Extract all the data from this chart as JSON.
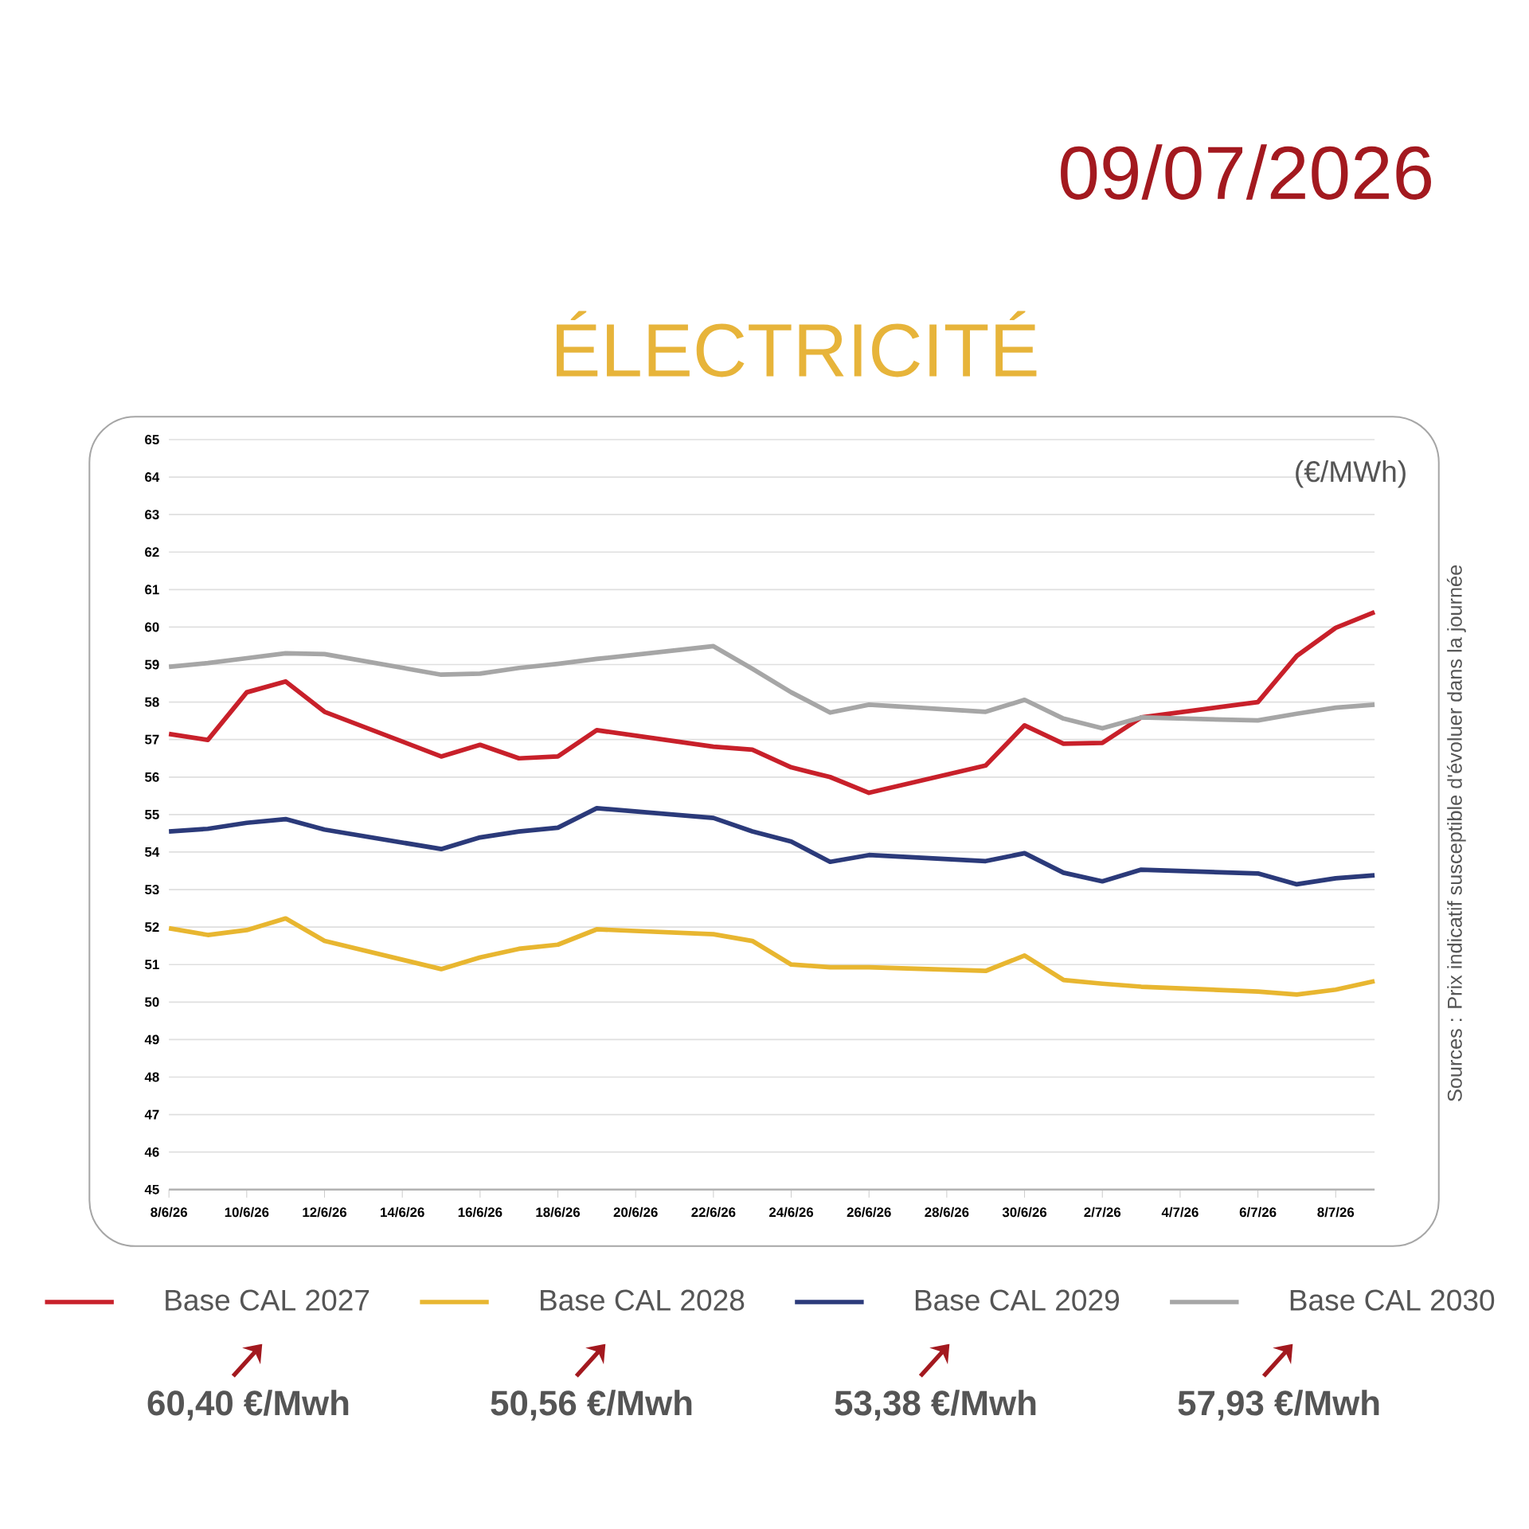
{
  "chart_data": {
    "type": "line",
    "title": "ÉLECTRICITÉ",
    "subtitle": "09/07/2026",
    "ylabel": "(€/MWh)",
    "x": [
      "2026-06-08",
      "2026-06-09",
      "2026-06-10",
      "2026-06-11",
      "2026-06-12",
      "2026-06-15",
      "2026-06-16",
      "2026-06-17",
      "2026-06-18",
      "2026-06-19",
      "2026-06-22",
      "2026-06-23",
      "2026-06-24",
      "2026-06-25",
      "2026-06-26",
      "2026-06-29",
      "2026-06-30",
      "2026-07-01",
      "2026-07-02",
      "2026-07-03",
      "2026-07-06",
      "2026-07-07",
      "2026-07-08",
      "2026-07-09"
    ],
    "series": [
      {
        "name": "Base CAL 2027",
        "color": "#c8202a",
        "values": [
          57.15,
          56.99,
          58.26,
          58.55,
          57.74,
          56.55,
          56.86,
          56.5,
          56.55,
          57.25,
          56.81,
          56.73,
          56.26,
          56.0,
          55.58,
          56.31,
          57.38,
          56.89,
          56.91,
          57.59,
          58.0,
          59.23,
          59.98,
          60.4
        ]
      },
      {
        "name": "Base CAL 2028",
        "color": "#e8b630",
        "values": [
          51.97,
          51.79,
          51.92,
          52.23,
          51.63,
          50.88,
          51.19,
          51.42,
          51.53,
          51.94,
          51.81,
          51.63,
          51.0,
          50.93,
          50.93,
          50.83,
          51.24,
          50.59,
          50.49,
          50.41,
          50.28,
          50.2,
          50.33,
          50.56
        ]
      },
      {
        "name": "Base CAL 2029",
        "color": "#2b3a7a",
        "values": [
          54.55,
          54.62,
          54.78,
          54.88,
          54.6,
          54.08,
          54.39,
          54.55,
          54.65,
          55.17,
          54.91,
          54.55,
          54.28,
          53.74,
          53.92,
          53.76,
          53.97,
          53.45,
          53.22,
          53.53,
          53.43,
          53.14,
          53.3,
          53.38
        ]
      },
      {
        "name": "Base CAL 2030",
        "color": "#a6a6a6",
        "values": [
          58.94,
          59.04,
          59.17,
          59.3,
          59.28,
          58.73,
          58.76,
          58.91,
          59.02,
          59.15,
          59.49,
          58.89,
          58.26,
          57.72,
          57.93,
          57.74,
          58.06,
          57.56,
          57.3,
          57.59,
          57.51,
          57.69,
          57.85,
          57.93
        ]
      }
    ],
    "xlim": [
      "2026-06-08",
      "2026-07-09"
    ],
    "xticks": [
      {
        "value": "2026-06-08",
        "label": "8/6/26"
      },
      {
        "value": "2026-06-10",
        "label": "10/6/26"
      },
      {
        "value": "2026-06-12",
        "label": "12/6/26"
      },
      {
        "value": "2026-06-14",
        "label": "14/6/26"
      },
      {
        "value": "2026-06-16",
        "label": "16/6/26"
      },
      {
        "value": "2026-06-18",
        "label": "18/6/26"
      },
      {
        "value": "2026-06-20",
        "label": "20/6/26"
      },
      {
        "value": "2026-06-22",
        "label": "22/6/26"
      },
      {
        "value": "2026-06-24",
        "label": "24/6/26"
      },
      {
        "value": "2026-06-26",
        "label": "26/6/26"
      },
      {
        "value": "2026-06-28",
        "label": "28/6/26"
      },
      {
        "value": "2026-06-30",
        "label": "30/6/26"
      },
      {
        "value": "2026-07-02",
        "label": "2/7/26"
      },
      {
        "value": "2026-07-04",
        "label": "4/7/26"
      },
      {
        "value": "2026-07-06",
        "label": "6/7/26"
      },
      {
        "value": "2026-07-08",
        "label": "8/7/26"
      }
    ],
    "ylim": [
      45,
      65
    ],
    "yticks": [
      45,
      46,
      47,
      48,
      49,
      50,
      51,
      52,
      53,
      54,
      55,
      56,
      57,
      58,
      59,
      60,
      61,
      62,
      63,
      64,
      65
    ],
    "grid": "y",
    "legend": "bottom",
    "marker": "none",
    "line_style": "solid",
    "annotations": [
      "60,40 €/Mwh",
      "50,56 €/Mwh",
      "53,38 €/Mwh",
      "57,93 €/Mwh",
      "Sources : Prix indicatif susceptible d'évoluer dans la journée"
    ]
  }
}
